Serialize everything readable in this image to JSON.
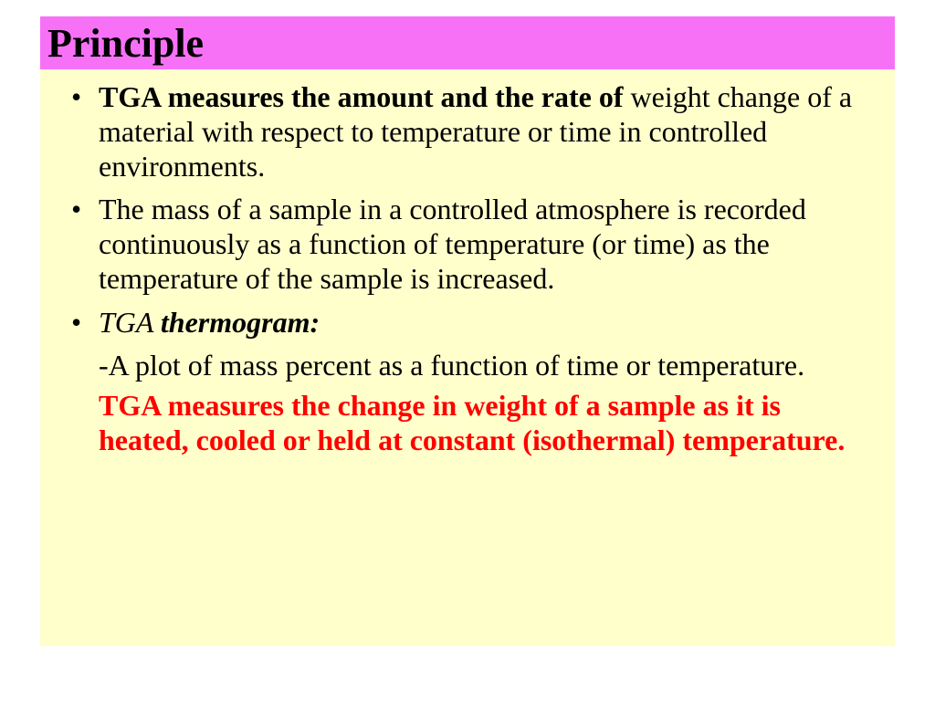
{
  "colors": {
    "title_bg": "#f771f7",
    "body_bg": "#ffffcc",
    "text": "#000000",
    "highlight": "#ff0000"
  },
  "title": "Principle",
  "bullets": {
    "b1": {
      "bold_lead": "TGA measures the amount and the rate of ",
      "rest": "weight change of a material with respect to temperature or time in controlled environments."
    },
    "b2": "The mass of a sample in a controlled atmosphere is recorded continuously as a function of temperature (or time) as the temperature of the sample is increased.",
    "b3": {
      "italic_part": "TGA ",
      "bold_part": "thermogram:"
    },
    "sub1": "-A plot of mass percent as a function of time or temperature.",
    "sub2": {
      "text": "TGA measures the change in weight of a sample as it is heated, cooled or held at constant (isothermal) temperature",
      "dot": "."
    }
  }
}
